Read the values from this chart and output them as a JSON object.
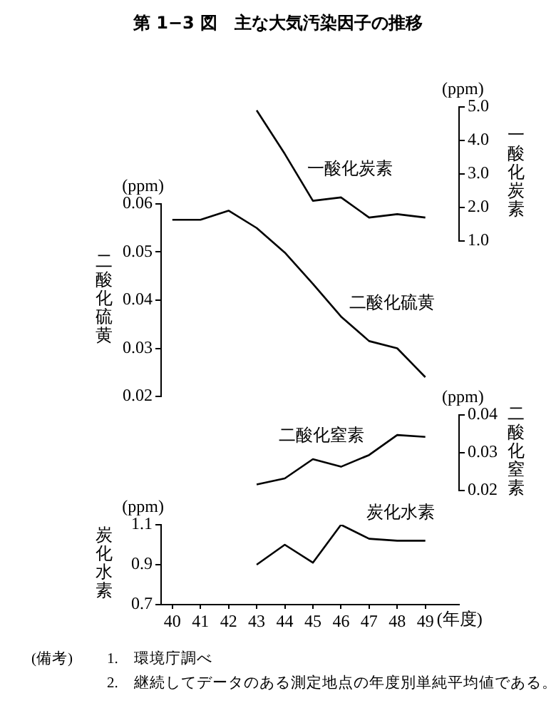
{
  "chart_data": [
    {
      "type": "line",
      "title": "第 1−3 図　主な大気汚染因子の推移",
      "x": [
        43,
        44,
        45,
        46,
        47,
        48,
        49
      ],
      "tick_labels": "y",
      "y2label": "一酸化炭素",
      "y2lim": [
        1,
        5
      ],
      "y2ticks": [
        {
          "value": 1,
          "label": "1.0"
        },
        {
          "value": 2,
          "label": "2.0"
        },
        {
          "value": 3,
          "label": "3.0"
        },
        {
          "value": 4,
          "label": "4.0"
        },
        {
          "value": 5,
          "label": "5.0"
        }
      ],
      "annotations": [
        "(ppm)"
      ],
      "series": [
        {
          "name": "一酸化炭素",
          "color": "#000000",
          "axis": "y2",
          "values": [
            4.9,
            3.6,
            2.2,
            2.3,
            1.7,
            1.8,
            1.7
          ]
        }
      ]
    },
    {
      "type": "line",
      "x": [
        40,
        41,
        42,
        43,
        44,
        45,
        46,
        47,
        48,
        49
      ],
      "tick_labels": "y",
      "ylabel": "二酸化硫黄",
      "ylim": [
        0.02,
        0.06
      ],
      "yticks": [
        0.02,
        0.03,
        0.04,
        0.05,
        0.06
      ],
      "annotations": [
        "(ppm)"
      ],
      "series": [
        {
          "name": "二酸化硫黄",
          "color": "#000000",
          "values": [
            0.0567,
            0.0567,
            0.0586,
            0.055,
            0.0499,
            0.0434,
            0.0366,
            0.0315,
            0.03,
            0.024
          ]
        }
      ]
    },
    {
      "type": "line",
      "x": [
        43,
        44,
        45,
        46,
        47,
        48,
        49
      ],
      "tick_labels": "y",
      "y2label": "二酸化窒素",
      "y2lim": [
        0.02,
        0.04
      ],
      "y2ticks": [
        0.02,
        0.03,
        0.04
      ],
      "annotations": [
        "(ppm)"
      ],
      "series": [
        {
          "name": "二酸化窒素",
          "color": "#000000",
          "axis": "y2",
          "values": [
            0.0216,
            0.0232,
            0.0283,
            0.0263,
            0.0294,
            0.0347,
            0.0342
          ]
        }
      ]
    },
    {
      "type": "line",
      "x": [
        43,
        44,
        45,
        46,
        47,
        48,
        49
      ],
      "xlim": [
        39.6,
        50.2
      ],
      "xticks": [
        40,
        41,
        42,
        43,
        44,
        45,
        46,
        47,
        48,
        49
      ],
      "xlabel": "(年度)",
      "ylabel": "炭化水素",
      "ylim": [
        0.7,
        1.1
      ],
      "yticks": [
        0.7,
        0.9,
        1.1
      ],
      "annotations": [
        "(ppm)",
        "(備考)",
        "1.　環境庁調べ",
        "2.　継続してデータのある測定地点の年度別単純平均値である。"
      ],
      "series": [
        {
          "name": "炭化水素",
          "color": "#000000",
          "values": [
            0.9,
            1.0,
            0.91,
            1.1,
            1.03,
            1.02,
            1.02
          ]
        }
      ]
    }
  ]
}
